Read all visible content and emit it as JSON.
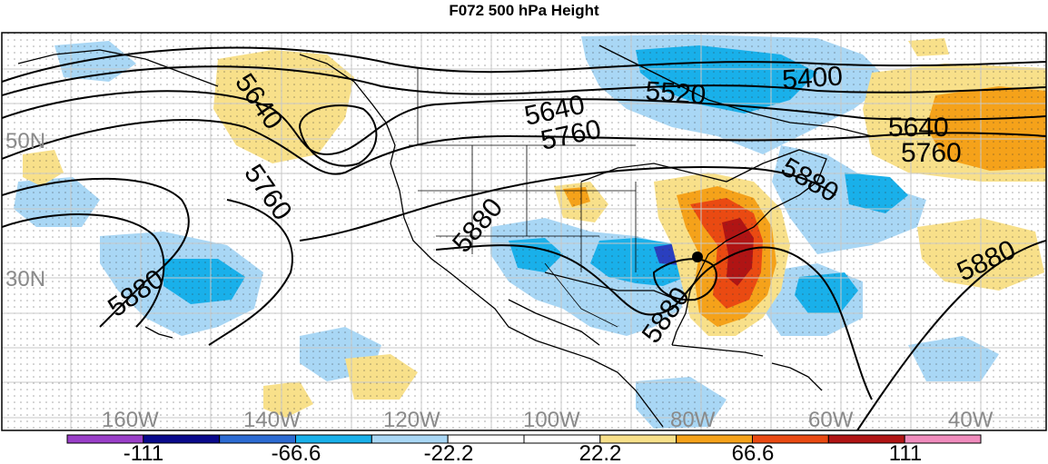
{
  "title": "F072 500 hPa Height",
  "lat_labels": [
    "50N",
    "30N"
  ],
  "lon_labels": [
    "160W",
    "140W",
    "120W",
    "100W",
    "80W",
    "60W",
    "40W"
  ],
  "contour_labels": [
    "5640",
    "5760",
    "5880",
    "5640",
    "5760",
    "5520",
    "5400",
    "5880",
    "5640",
    "5760",
    "5880",
    "5880",
    "5880"
  ],
  "colorbar": {
    "labels": [
      "-111",
      "-66.6",
      "-22.2",
      "22.2",
      "66.6",
      "111"
    ],
    "colors": [
      "#9a3fc8",
      "#0a0a8c",
      "#2c6bd2",
      "#19b0ea",
      "#a9d7f5",
      "#ffffff",
      "#ffffff",
      "#f8e08a",
      "#f5a21a",
      "#ea4a12",
      "#b01414",
      "#f08cbd"
    ]
  },
  "fill_colors": {
    "deep_blue": "#2a3fbf",
    "blue": "#19b0ea",
    "light_blue": "#a9d7f5",
    "yellow": "#f8e08a",
    "orange": "#f5a21a",
    "red_orange": "#ea4a12",
    "dark_red": "#b01414"
  }
}
